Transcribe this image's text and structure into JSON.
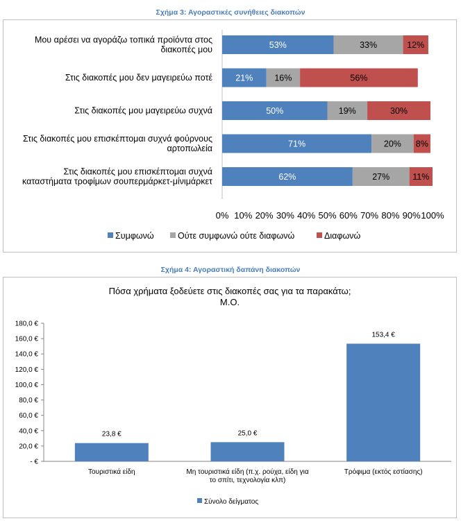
{
  "chart_data": [
    {
      "type": "bar",
      "orientation": "horizontal",
      "stacked": true,
      "caption": "Σχήμα 3: Αγοραστικές συνήθειες διακοπών",
      "categories": [
        [
          "Μου αρέσει να αγοράζω τοπικά προϊόντα στος",
          "διακοπές μου"
        ],
        [
          "Στις διακοπές μου δεν μαγειρεύω ποτέ"
        ],
        [
          "Στις διακοπές μου μαγειρεύω συχνά"
        ],
        [
          "Στις διακοπές μου επισκέπτομαι συχνά φούρνους",
          "αρτοπωλεία"
        ],
        [
          "Στις διακοπές μου επισκέπτομαι συχνά",
          "καταστήματα τροφίμων σουπερμάρκετ-μίνιμάρκετ"
        ]
      ],
      "series": [
        {
          "name": "Συμφωνώ",
          "color": "#4f81bd",
          "values": [
            53,
            21,
            50,
            71,
            62
          ],
          "labels": [
            "53%",
            "21%",
            "50%",
            "71%",
            "62%"
          ]
        },
        {
          "name": "Ούτε συμφωνώ ούτε διαφωνώ",
          "color": "#a6a6a6",
          "values": [
            33,
            16,
            19,
            20,
            27
          ],
          "labels": [
            "33%",
            "16%",
            "19%",
            "20%",
            "27%"
          ]
        },
        {
          "name": "Διαφωνώ",
          "color": "#c0504d",
          "values": [
            12,
            56,
            30,
            8,
            11
          ],
          "labels": [
            "12%",
            "56%",
            "30%",
            "8%",
            "11%"
          ]
        }
      ],
      "xlim": [
        0,
        100
      ],
      "xticks": [
        "0%",
        "10%",
        "20%",
        "30%",
        "40%",
        "50%",
        "60%",
        "70%",
        "80%",
        "90%",
        "100%"
      ],
      "legend_position": "bottom"
    },
    {
      "type": "bar",
      "caption": "Σχήμα 4: Αγοραστική δαπάνη διακοπών",
      "title": [
        "Πόσα χρήματα ξοδεύετε στις διακοπές σας για τα παρακάτω;",
        "Μ.Ο."
      ],
      "categories": [
        [
          "Τουριστικά είδη"
        ],
        [
          "Μη τουριστικά είδη (π.χ. ρούχα, είδη για",
          "το σπίτι, τεχνολογία κλπ)"
        ],
        [
          "Τρόφιμα (εκτός εστίασης)"
        ]
      ],
      "series": [
        {
          "name": "Σύνολο δείγματος",
          "color": "#4f81bd",
          "values": [
            23.8,
            25.0,
            153.4
          ],
          "labels": [
            "23,8 €",
            "25,0 €",
            "153,4 €"
          ]
        }
      ],
      "ylim": [
        0,
        180
      ],
      "yticks": [
        "-  €",
        "20,0 €",
        "40,0 €",
        "60,0 €",
        "80,0 €",
        "100,0 €",
        "120,0 €",
        "140,0 €",
        "160,0 €",
        "180,0 €"
      ],
      "legend_position": "bottom"
    }
  ]
}
